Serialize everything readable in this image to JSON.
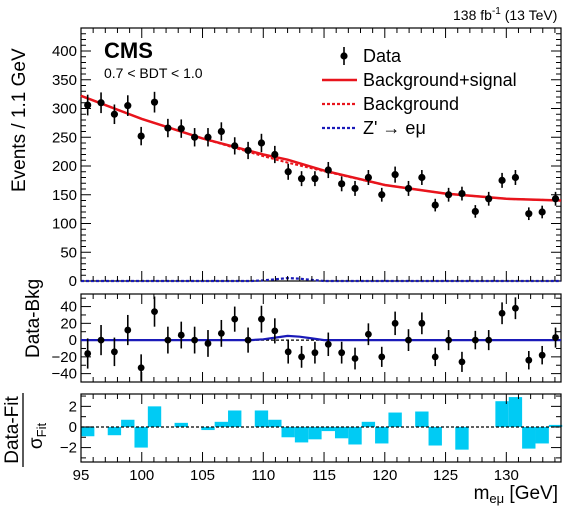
{
  "header": {
    "lumi": "138 fb",
    "lumi_sup": "-1",
    "energy": " (13 TeV)",
    "experiment": "CMS",
    "category": "0.7 < BDT < 1.0"
  },
  "axes": {
    "xlabel_main": "m",
    "xlabel_sub": "eμ",
    "xlabel_unit": " [GeV]",
    "top_ylabel": "Events / 1.1 GeV",
    "mid_ylabel": "Data-Bkg",
    "bot_ylabel_num": "Data-Fit",
    "bot_ylabel_den": "σ",
    "bot_ylabel_den_sub": "Fit"
  },
  "legend": [
    {
      "label": "Data",
      "style": "marker",
      "color": "#000000"
    },
    {
      "label": "Background+signal",
      "style": "solid",
      "color": "#e8141c"
    },
    {
      "label": "Background",
      "style": "dotted",
      "color": "#e8141c"
    },
    {
      "label": "Z' → eμ",
      "style": "dotted",
      "color": "#1a1ab8"
    }
  ],
  "chart_data": [
    {
      "type": "scatter",
      "panel": "main",
      "x": [
        95.55,
        96.65,
        97.75,
        98.85,
        99.95,
        101.05,
        102.15,
        103.25,
        104.35,
        105.45,
        106.55,
        107.65,
        108.75,
        109.85,
        110.95,
        112.05,
        113.15,
        114.25,
        115.35,
        116.45,
        117.55,
        118.65,
        119.75,
        120.85,
        121.95,
        123.05,
        124.15,
        125.25,
        126.35,
        127.45,
        128.55,
        129.65,
        130.75,
        131.85,
        132.95,
        134.05
      ],
      "y": [
        306,
        310,
        290,
        305,
        252,
        311,
        266,
        265,
        250,
        250,
        260,
        235,
        227,
        240,
        220,
        190,
        178,
        178,
        193,
        169,
        161,
        180,
        150,
        185,
        161,
        180,
        132,
        150,
        152,
        121,
        143,
        175,
        180,
        117,
        120,
        143
      ],
      "series": [
        {
          "name": "Data",
          "x": [
            95.55,
            96.65,
            97.75,
            98.85,
            99.95,
            101.05,
            102.15,
            103.25,
            104.35,
            105.45,
            106.55,
            107.65,
            108.75,
            109.85,
            110.95,
            112.05,
            113.15,
            114.25,
            115.35,
            116.45,
            117.55,
            118.65,
            119.75,
            120.85,
            121.95,
            123.05,
            124.15,
            125.25,
            126.35,
            127.45,
            128.55,
            129.65,
            130.75,
            131.85,
            132.95,
            134.05
          ],
          "values": [
            306,
            310,
            290,
            305,
            252,
            311,
            266,
            265,
            250,
            250,
            260,
            235,
            227,
            240,
            220,
            190,
            178,
            178,
            193,
            169,
            161,
            180,
            150,
            185,
            161,
            180,
            132,
            150,
            152,
            121,
            143,
            175,
            180,
            117,
            120,
            143
          ],
          "errors": [
            18,
            18,
            17,
            18,
            16,
            18,
            16,
            16,
            16,
            16,
            16,
            15,
            15,
            16,
            15,
            14,
            13,
            13,
            14,
            13,
            13,
            13,
            12,
            14,
            13,
            13,
            11,
            12,
            12,
            11,
            12,
            13,
            13,
            11,
            11,
            12
          ]
        },
        {
          "name": "Background+signal",
          "x": [
            95,
            100,
            105,
            110,
            112,
            115,
            120,
            125,
            130,
            134.5
          ],
          "values": [
            322,
            282,
            248,
            220,
            211,
            192,
            167,
            152,
            143,
            140
          ]
        },
        {
          "name": "Background",
          "x": [
            95,
            100,
            105,
            110,
            112,
            115,
            120,
            125,
            130,
            134.5
          ],
          "values": [
            322,
            282,
            248,
            217,
            206,
            191,
            167,
            152,
            143,
            140
          ]
        },
        {
          "name": "Z' → eμ",
          "x": [
            95,
            109,
            110,
            111,
            112,
            113,
            114,
            115,
            134.5
          ],
          "values": [
            0,
            0,
            1,
            3,
            5,
            4,
            2,
            0,
            0
          ]
        }
      ],
      "xlim": [
        95,
        134.5
      ],
      "ylim": [
        0,
        440
      ],
      "yticks": [
        0,
        50,
        100,
        150,
        200,
        250,
        300,
        350,
        400
      ]
    },
    {
      "type": "scatter",
      "panel": "residual",
      "x": [
        95.55,
        96.65,
        97.75,
        98.85,
        99.95,
        101.05,
        102.15,
        103.25,
        104.35,
        105.45,
        106.55,
        107.65,
        108.75,
        109.85,
        110.95,
        112.05,
        113.15,
        114.25,
        115.35,
        116.45,
        117.55,
        118.65,
        119.75,
        120.85,
        121.95,
        123.05,
        124.15,
        125.25,
        126.35,
        127.45,
        128.55,
        129.65,
        130.75,
        131.85,
        132.95,
        134.05
      ],
      "y": [
        -16,
        0,
        -14,
        12,
        -33,
        34,
        0,
        6,
        0,
        -4,
        8,
        25,
        0,
        25,
        11,
        -14,
        -20,
        -15,
        -5,
        -15,
        -22,
        7,
        -20,
        20,
        0,
        20,
        -20,
        0,
        -26,
        0,
        0,
        32,
        38,
        -24,
        -18,
        3
      ],
      "errors": [
        18,
        18,
        17,
        18,
        16,
        18,
        16,
        16,
        16,
        16,
        16,
        15,
        15,
        16,
        15,
        14,
        13,
        13,
        14,
        13,
        13,
        13,
        12,
        14,
        13,
        13,
        11,
        12,
        12,
        11,
        12,
        13,
        13,
        11,
        11,
        12
      ],
      "signal_curve": {
        "x": [
          95,
          109,
          110,
          111,
          112,
          113,
          114,
          115,
          134.5
        ],
        "values": [
          0,
          0,
          1,
          3,
          5,
          4,
          2,
          0,
          0
        ]
      },
      "xlim": [
        95,
        134.5
      ],
      "ylim": [
        -50,
        55
      ],
      "yticks": [
        -40,
        -20,
        0,
        20,
        40
      ]
    },
    {
      "type": "bar",
      "panel": "pull",
      "x": [
        95.55,
        96.65,
        97.75,
        98.85,
        99.95,
        101.05,
        102.15,
        103.25,
        104.35,
        105.45,
        106.55,
        107.65,
        108.75,
        109.85,
        110.95,
        112.05,
        113.15,
        114.25,
        115.35,
        116.45,
        117.55,
        118.65,
        119.75,
        120.85,
        121.95,
        123.05,
        124.15,
        125.25,
        126.35,
        127.45,
        128.55,
        129.65,
        130.75,
        131.85,
        132.95,
        134.05
      ],
      "values": [
        -0.9,
        0,
        -0.8,
        0.7,
        -2.0,
        2.0,
        0,
        0.4,
        0,
        -0.3,
        0.5,
        1.6,
        0,
        1.6,
        0.7,
        -1.0,
        -1.5,
        -1.2,
        -0.4,
        -1.1,
        -1.7,
        0.5,
        -1.6,
        1.4,
        0,
        1.5,
        -1.8,
        0,
        -2.2,
        0,
        0,
        2.5,
        2.9,
        -2.1,
        -1.6,
        0.2
      ],
      "xlim": [
        95,
        134.5
      ],
      "ylim": [
        -3.4,
        3.2
      ],
      "yticks": [
        -2,
        0,
        2
      ],
      "xticks": [
        95,
        100,
        105,
        110,
        115,
        120,
        125,
        130
      ],
      "color": "#00cbf4"
    }
  ]
}
